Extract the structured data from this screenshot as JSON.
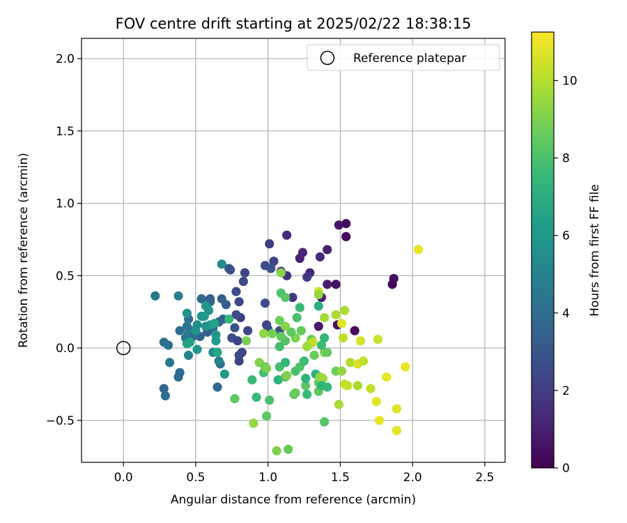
{
  "chart_data": {
    "type": "scatter",
    "title": "FOV centre drift starting at 2025/02/22 18:38:15",
    "xlabel": "Angular distance from reference (arcmin)",
    "ylabel": "Rotation from reference (arcmin)",
    "xlim": [
      -0.29,
      2.64
    ],
    "ylim": [
      -0.79,
      2.14
    ],
    "x_ticks": [
      0.0,
      0.5,
      1.0,
      1.5,
      2.0,
      2.5
    ],
    "x_tick_labels": [
      "0.0",
      "0.5",
      "1.0",
      "1.5",
      "2.0",
      "2.5"
    ],
    "y_ticks": [
      -0.5,
      0.0,
      0.5,
      1.0,
      1.5,
      2.0
    ],
    "y_tick_labels": [
      "−0.5",
      "0.0",
      "0.5",
      "1.0",
      "1.5",
      "2.0"
    ],
    "grid": true,
    "legend": {
      "position": "top-right",
      "entries": [
        {
          "label": "Reference platepar",
          "marker": "open-circle"
        }
      ]
    },
    "reference_point": {
      "x": 0.0,
      "y": 0.0
    },
    "colorbar": {
      "label": "Hours from first FF file",
      "colormap": "viridis",
      "range": [
        0,
        11.25
      ],
      "ticks": [
        0,
        2,
        4,
        6,
        8,
        10
      ],
      "tick_labels": [
        "0",
        "2",
        "4",
        "6",
        "8",
        "10"
      ]
    },
    "points": [
      {
        "x": 1.49,
        "y": 0.85,
        "h": 0.6
      },
      {
        "x": 1.54,
        "y": 0.86,
        "h": 0.4
      },
      {
        "x": 1.54,
        "y": 0.77,
        "h": 0.3
      },
      {
        "x": 1.41,
        "y": 0.68,
        "h": 1.0
      },
      {
        "x": 1.13,
        "y": 0.78,
        "h": 1.3
      },
      {
        "x": 1.24,
        "y": 0.66,
        "h": 1.2
      },
      {
        "x": 1.22,
        "y": 0.62,
        "h": 1.1
      },
      {
        "x": 1.36,
        "y": 0.63,
        "h": 1.4
      },
      {
        "x": 1.01,
        "y": 0.72,
        "h": 2.0
      },
      {
        "x": 1.29,
        "y": 0.52,
        "h": 1.3
      },
      {
        "x": 1.27,
        "y": 0.49,
        "h": 1.9
      },
      {
        "x": 1.41,
        "y": 0.44,
        "h": 0.9
      },
      {
        "x": 1.47,
        "y": 0.44,
        "h": 0.6
      },
      {
        "x": 1.87,
        "y": 0.48,
        "h": 0.4
      },
      {
        "x": 1.86,
        "y": 0.44,
        "h": 0.3
      },
      {
        "x": 1.09,
        "y": 0.53,
        "h": 1.4
      },
      {
        "x": 1.13,
        "y": 0.5,
        "h": 1.6
      },
      {
        "x": 1.04,
        "y": 0.6,
        "h": 2.3
      },
      {
        "x": 0.98,
        "y": 0.57,
        "h": 2.6
      },
      {
        "x": 1.02,
        "y": 0.55,
        "h": 2.8
      },
      {
        "x": 1.17,
        "y": 0.35,
        "h": 1.9
      },
      {
        "x": 1.37,
        "y": 0.35,
        "h": 1.0
      },
      {
        "x": 0.84,
        "y": 0.52,
        "h": 2.3
      },
      {
        "x": 0.83,
        "y": 0.46,
        "h": 2.5
      },
      {
        "x": 0.73,
        "y": 0.55,
        "h": 3.0
      },
      {
        "x": 0.74,
        "y": 0.54,
        "h": 2.8
      },
      {
        "x": 0.78,
        "y": 0.39,
        "h": 2.6
      },
      {
        "x": 0.68,
        "y": 0.58,
        "h": 5.5
      },
      {
        "x": 0.98,
        "y": 0.31,
        "h": 2.5
      },
      {
        "x": 0.8,
        "y": 0.32,
        "h": 2.4
      },
      {
        "x": 0.71,
        "y": 0.3,
        "h": 3.3
      },
      {
        "x": 0.68,
        "y": 0.34,
        "h": 3.5
      },
      {
        "x": 0.6,
        "y": 0.34,
        "h": 3.2
      },
      {
        "x": 0.54,
        "y": 0.34,
        "h": 3.8
      },
      {
        "x": 0.6,
        "y": 0.32,
        "h": 3.6
      },
      {
        "x": 1.35,
        "y": 0.15,
        "h": 0.8
      },
      {
        "x": 1.48,
        "y": 0.16,
        "h": 0.5
      },
      {
        "x": 1.6,
        "y": 0.12,
        "h": 0.3
      },
      {
        "x": 0.99,
        "y": 0.16,
        "h": 2.2
      },
      {
        "x": 1.0,
        "y": 0.13,
        "h": 2.6
      },
      {
        "x": 1.08,
        "y": 0.12,
        "h": 2.8
      },
      {
        "x": 0.86,
        "y": 0.12,
        "h": 2.4
      },
      {
        "x": 0.77,
        "y": 0.14,
        "h": 2.9
      },
      {
        "x": 0.75,
        "y": 0.07,
        "h": 2.7
      },
      {
        "x": 0.81,
        "y": 0.21,
        "h": 2.1
      },
      {
        "x": 0.78,
        "y": 0.23,
        "h": 2.5
      },
      {
        "x": 0.79,
        "y": 0.05,
        "h": 2.2
      },
      {
        "x": 0.82,
        "y": -0.03,
        "h": 2.4
      },
      {
        "x": 0.8,
        "y": -0.05,
        "h": 2.6
      },
      {
        "x": 0.8,
        "y": -0.09,
        "h": 2.3
      },
      {
        "x": 0.69,
        "y": 0.2,
        "h": 3.3
      },
      {
        "x": 0.66,
        "y": 0.18,
        "h": 3.6
      },
      {
        "x": 0.62,
        "y": 0.14,
        "h": 3.8
      },
      {
        "x": 0.58,
        "y": 0.11,
        "h": 3.4
      },
      {
        "x": 0.53,
        "y": 0.08,
        "h": 3.5
      },
      {
        "x": 0.45,
        "y": 0.2,
        "h": 4.0
      },
      {
        "x": 0.44,
        "y": 0.15,
        "h": 4.3
      },
      {
        "x": 0.47,
        "y": 0.12,
        "h": 4.2
      },
      {
        "x": 0.45,
        "y": 0.1,
        "h": 4.5
      },
      {
        "x": 0.48,
        "y": 0.08,
        "h": 4.0
      },
      {
        "x": 0.39,
        "y": 0.12,
        "h": 4.1
      },
      {
        "x": 0.43,
        "y": 0.07,
        "h": 4.4
      },
      {
        "x": 0.38,
        "y": 0.36,
        "h": 4.9
      },
      {
        "x": 0.22,
        "y": 0.36,
        "h": 4.5
      },
      {
        "x": 0.28,
        "y": 0.04,
        "h": 4.2
      },
      {
        "x": 0.31,
        "y": 0.02,
        "h": 4.2
      },
      {
        "x": 0.32,
        "y": -0.1,
        "h": 4.5
      },
      {
        "x": 0.39,
        "y": -0.17,
        "h": 4.0
      },
      {
        "x": 0.38,
        "y": -0.2,
        "h": 3.7
      },
      {
        "x": 0.28,
        "y": -0.28,
        "h": 3.8
      },
      {
        "x": 0.29,
        "y": -0.33,
        "h": 4.1
      },
      {
        "x": 0.65,
        "y": -0.27,
        "h": 3.9
      },
      {
        "x": 0.67,
        "y": -0.11,
        "h": 4.2
      },
      {
        "x": 0.66,
        "y": -0.09,
        "h": 4.9
      },
      {
        "x": 0.62,
        "y": -0.03,
        "h": 5.3
      },
      {
        "x": 0.45,
        "y": -0.05,
        "h": 5.0
      },
      {
        "x": 0.44,
        "y": 0.24,
        "h": 5.7
      },
      {
        "x": 0.57,
        "y": 0.29,
        "h": 6.0
      },
      {
        "x": 0.59,
        "y": 0.26,
        "h": 5.7
      },
      {
        "x": 0.56,
        "y": 0.22,
        "h": 6.1
      },
      {
        "x": 0.54,
        "y": 0.22,
        "h": 5.9
      },
      {
        "x": 0.6,
        "y": 0.16,
        "h": 6.3
      },
      {
        "x": 0.57,
        "y": 0.15,
        "h": 5.8
      },
      {
        "x": 0.51,
        "y": 0.16,
        "h": 5.5
      },
      {
        "x": 0.5,
        "y": 0.12,
        "h": 5.7
      },
      {
        "x": 0.46,
        "y": 0.04,
        "h": 6.6
      },
      {
        "x": 0.44,
        "y": 0.03,
        "h": 6.4
      },
      {
        "x": 0.51,
        "y": -0.01,
        "h": 6.0
      },
      {
        "x": 0.64,
        "y": 0.05,
        "h": 6.2
      },
      {
        "x": 0.64,
        "y": 0.09,
        "h": 5.9
      },
      {
        "x": 0.63,
        "y": 0.17,
        "h": 6.4
      },
      {
        "x": 0.65,
        "y": -0.03,
        "h": 6.7
      },
      {
        "x": 0.7,
        "y": -0.18,
        "h": 6.1
      },
      {
        "x": 0.73,
        "y": 0.2,
        "h": 7.5
      },
      {
        "x": 0.85,
        "y": 0.05,
        "h": 8.9
      },
      {
        "x": 0.77,
        "y": -0.35,
        "h": 8.4
      },
      {
        "x": 0.89,
        "y": -0.22,
        "h": 7.6
      },
      {
        "x": 0.92,
        "y": -0.34,
        "h": 7.6
      },
      {
        "x": 0.9,
        "y": -0.52,
        "h": 9.4
      },
      {
        "x": 0.94,
        "y": -0.1,
        "h": 9.1
      },
      {
        "x": 0.97,
        "y": -0.17,
        "h": 7.8
      },
      {
        "x": 0.98,
        "y": -0.13,
        "h": 8.6
      },
      {
        "x": 0.99,
        "y": -0.14,
        "h": 9.0
      },
      {
        "x": 1.01,
        "y": -0.36,
        "h": 8.0
      },
      {
        "x": 0.99,
        "y": -0.47,
        "h": 8.4
      },
      {
        "x": 1.06,
        "y": -0.71,
        "h": 9.1
      },
      {
        "x": 1.14,
        "y": -0.7,
        "h": 8.6
      },
      {
        "x": 1.08,
        "y": -0.13,
        "h": 7.8
      },
      {
        "x": 1.07,
        "y": -0.22,
        "h": 7.3
      },
      {
        "x": 1.12,
        "y": -0.2,
        "h": 8.1
      },
      {
        "x": 1.12,
        "y": -0.1,
        "h": 7.4
      },
      {
        "x": 1.13,
        "y": -0.19,
        "h": 9.1
      },
      {
        "x": 1.18,
        "y": -0.32,
        "h": 8.3
      },
      {
        "x": 1.19,
        "y": -0.31,
        "h": 8.6
      },
      {
        "x": 1.19,
        "y": -0.16,
        "h": 7.9
      },
      {
        "x": 1.22,
        "y": -0.13,
        "h": 8.1
      },
      {
        "x": 1.25,
        "y": -0.09,
        "h": 7.7
      },
      {
        "x": 1.26,
        "y": -0.26,
        "h": 8.3
      },
      {
        "x": 1.27,
        "y": -0.32,
        "h": 7.6
      },
      {
        "x": 1.26,
        "y": -0.21,
        "h": 7.3
      },
      {
        "x": 1.33,
        "y": -0.18,
        "h": 7.2
      },
      {
        "x": 1.35,
        "y": -0.24,
        "h": 8.6
      },
      {
        "x": 1.36,
        "y": -0.2,
        "h": 9.4
      },
      {
        "x": 1.38,
        "y": -0.21,
        "h": 9.6
      },
      {
        "x": 1.35,
        "y": -0.3,
        "h": 8.5
      },
      {
        "x": 1.37,
        "y": -0.26,
        "h": 7.3
      },
      {
        "x": 1.41,
        "y": -0.27,
        "h": 7.5
      },
      {
        "x": 1.39,
        "y": -0.51,
        "h": 8.2
      },
      {
        "x": 1.47,
        "y": -0.16,
        "h": 8.7
      },
      {
        "x": 1.49,
        "y": -0.39,
        "h": 9.8
      },
      {
        "x": 1.51,
        "y": -0.16,
        "h": 9.4
      },
      {
        "x": 1.53,
        "y": -0.25,
        "h": 10.1
      },
      {
        "x": 1.55,
        "y": -0.26,
        "h": 10.3
      },
      {
        "x": 1.57,
        "y": -0.1,
        "h": 9.9
      },
      {
        "x": 1.62,
        "y": -0.26,
        "h": 9.8
      },
      {
        "x": 1.62,
        "y": -0.11,
        "h": 10.6
      },
      {
        "x": 1.66,
        "y": -0.09,
        "h": 10.2
      },
      {
        "x": 1.71,
        "y": -0.28,
        "h": 10.3
      },
      {
        "x": 1.75,
        "y": -0.37,
        "h": 10.8
      },
      {
        "x": 1.77,
        "y": -0.5,
        "h": 10.9
      },
      {
        "x": 1.82,
        "y": -0.2,
        "h": 10.9
      },
      {
        "x": 1.89,
        "y": -0.42,
        "h": 10.7
      },
      {
        "x": 1.89,
        "y": -0.57,
        "h": 10.8
      },
      {
        "x": 1.95,
        "y": -0.13,
        "h": 10.9
      },
      {
        "x": 1.64,
        "y": 0.05,
        "h": 10.6
      },
      {
        "x": 1.76,
        "y": 0.06,
        "h": 10.4
      },
      {
        "x": 2.04,
        "y": 0.68,
        "h": 10.9
      },
      {
        "x": 1.51,
        "y": 0.17,
        "h": 10.8
      },
      {
        "x": 1.52,
        "y": 0.07,
        "h": 10.2
      },
      {
        "x": 1.53,
        "y": 0.26,
        "h": 9.8
      },
      {
        "x": 1.47,
        "y": 0.23,
        "h": 9.9
      },
      {
        "x": 1.39,
        "y": 0.21,
        "h": 9.7
      },
      {
        "x": 1.35,
        "y": 0.39,
        "h": 10.4
      },
      {
        "x": 1.35,
        "y": 0.37,
        "h": 9.4
      },
      {
        "x": 1.35,
        "y": 0.29,
        "h": 7.0
      },
      {
        "x": 1.3,
        "y": 0.06,
        "h": 8.7
      },
      {
        "x": 1.31,
        "y": 0.04,
        "h": 10.1
      },
      {
        "x": 1.28,
        "y": 0.02,
        "h": 10.3
      },
      {
        "x": 1.27,
        "y": 0.01,
        "h": 9.6
      },
      {
        "x": 1.32,
        "y": -0.05,
        "h": 8.7
      },
      {
        "x": 1.39,
        "y": 0.07,
        "h": 7.4
      },
      {
        "x": 1.39,
        "y": -0.03,
        "h": 9.1
      },
      {
        "x": 1.41,
        "y": -0.03,
        "h": 8.6
      },
      {
        "x": 1.37,
        "y": 0.02,
        "h": 7.6
      },
      {
        "x": 1.22,
        "y": 0.28,
        "h": 7.6
      },
      {
        "x": 1.2,
        "y": 0.21,
        "h": 8.0
      },
      {
        "x": 1.23,
        "y": 0.12,
        "h": 8.6
      },
      {
        "x": 1.19,
        "y": 0.07,
        "h": 9.0
      },
      {
        "x": 1.16,
        "y": 0.11,
        "h": 8.4
      },
      {
        "x": 1.12,
        "y": 0.15,
        "h": 9.2
      },
      {
        "x": 1.08,
        "y": 0.19,
        "h": 8.7
      },
      {
        "x": 1.12,
        "y": 0.05,
        "h": 8.2
      },
      {
        "x": 1.09,
        "y": 0.08,
        "h": 8.5
      },
      {
        "x": 1.08,
        "y": 0.01,
        "h": 7.8
      },
      {
        "x": 1.03,
        "y": 0.1,
        "h": 8.9
      },
      {
        "x": 0.97,
        "y": 0.1,
        "h": 9.4
      },
      {
        "x": 1.09,
        "y": 0.38,
        "h": 8.1
      },
      {
        "x": 1.12,
        "y": 0.35,
        "h": 8.3
      },
      {
        "x": 1.09,
        "y": 0.52,
        "h": 9.2
      }
    ]
  }
}
